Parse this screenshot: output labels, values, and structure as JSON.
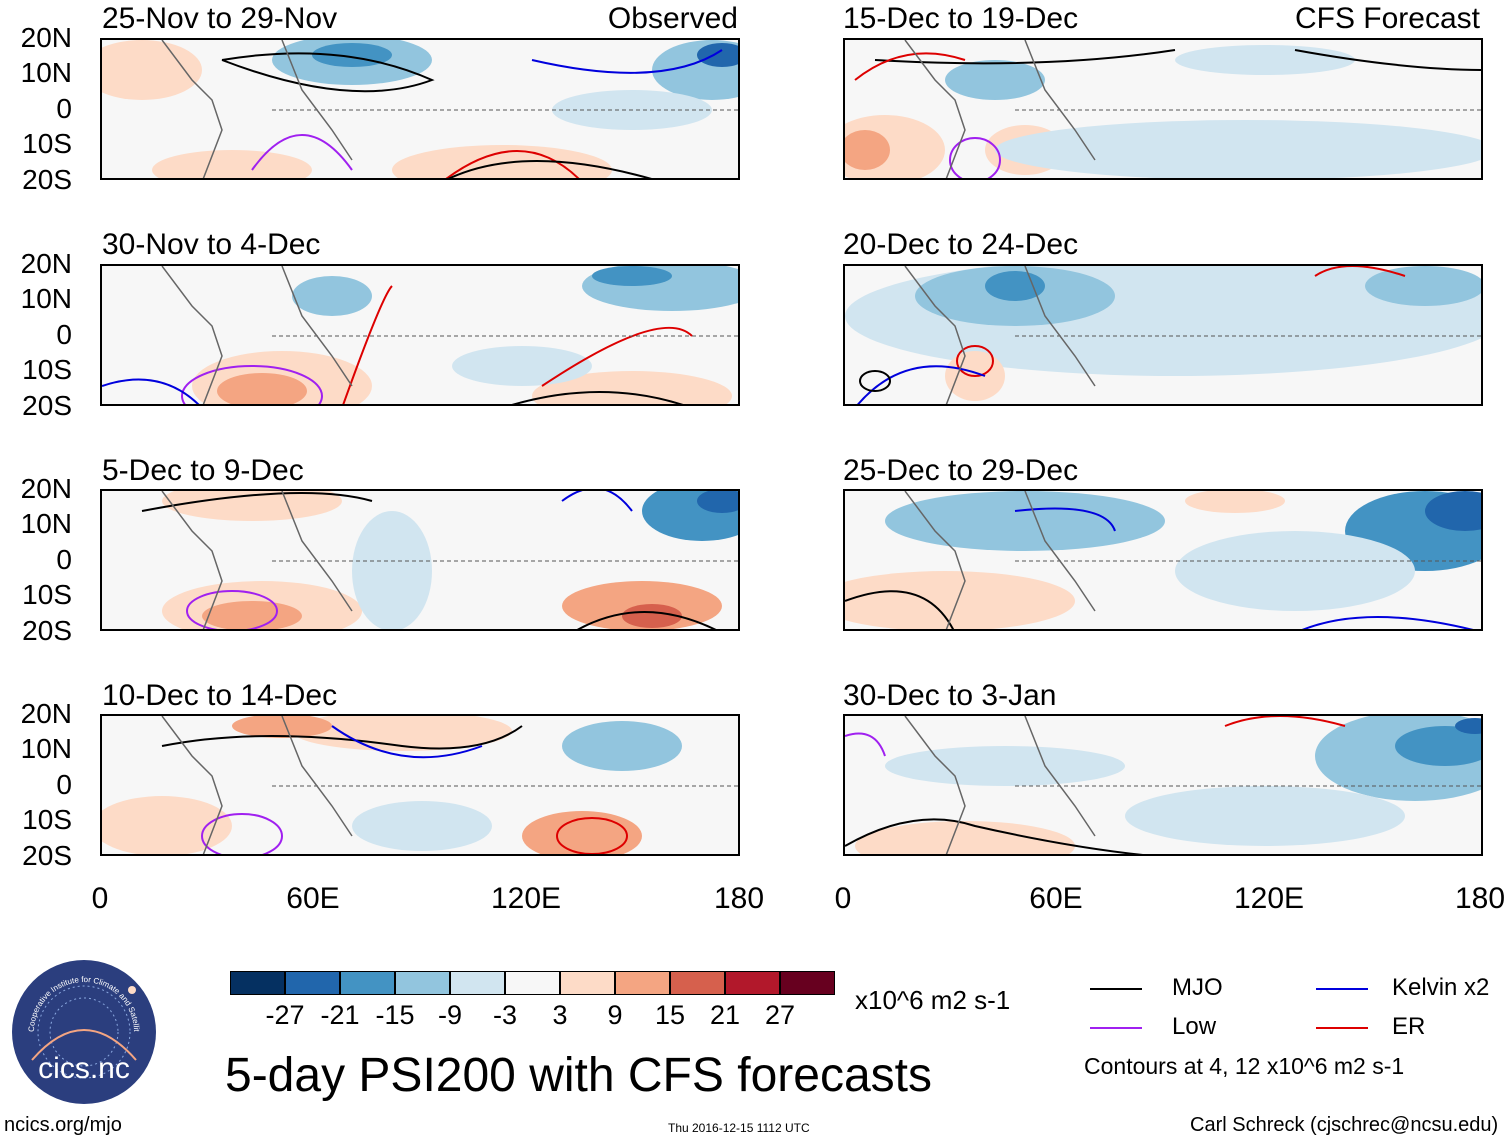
{
  "panels": [
    {
      "title": "25-Nov to 29-Nov",
      "label": "Observed"
    },
    {
      "title": "30-Nov to 4-Dec",
      "label": ""
    },
    {
      "title": "5-Dec to 9-Dec",
      "label": ""
    },
    {
      "title": "10-Dec to 14-Dec",
      "label": ""
    },
    {
      "title": "15-Dec to 19-Dec",
      "label": "CFS Forecast"
    },
    {
      "title": "20-Dec to 24-Dec",
      "label": ""
    },
    {
      "title": "25-Dec to 29-Dec",
      "label": ""
    },
    {
      "title": "30-Dec to 3-Jan",
      "label": ""
    }
  ],
  "lat_labels": [
    "20N",
    "10N",
    "0",
    "10S",
    "20S"
  ],
  "lon_labels": [
    "0",
    "60E",
    "120E",
    "180"
  ],
  "colorbar": {
    "colors": [
      "#053061",
      "#2166ac",
      "#4393c3",
      "#92c5de",
      "#d1e5f0",
      "#f7f7f7",
      "#fddbc7",
      "#f4a582",
      "#d6604d",
      "#b2182b",
      "#67001f"
    ],
    "ticks": [
      "-27",
      "-21",
      "-15",
      "-9",
      "-3",
      "3",
      "9",
      "15",
      "21",
      "27"
    ],
    "units": "x10^6 m2 s-1"
  },
  "legend": {
    "items": [
      {
        "name": "MJO",
        "color": "#000000"
      },
      {
        "name": "Kelvin x2",
        "color": "#0000dd"
      },
      {
        "name": "Low",
        "color": "#a020f0"
      },
      {
        "name": "ER",
        "color": "#dd0000"
      }
    ],
    "contours_note": "Contours at 4, 12 x10^6 m2 s-1"
  },
  "main_title": "5-day PSI200 with CFS forecasts",
  "logo_text": "cics.nc",
  "logo_ring_text": "Cooperative Institute for Climate and Satellites",
  "footer": {
    "url": "ncics.org/mjo",
    "timestamp": "Thu 2016-12-15 1112 UTC",
    "author": "Carl Schreck (cjschrec@ncsu.edu)"
  }
}
